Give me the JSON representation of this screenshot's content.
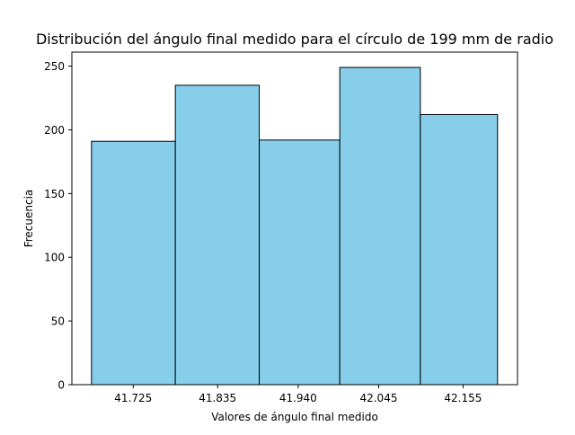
{
  "chart_data": {
    "type": "bar",
    "title": "Distribución del ángulo final medido para el círculo de 199 mm de radio",
    "xlabel": "Valores de ángulo final medido",
    "ylabel": "Frecuencia",
    "categories": [
      "41.725",
      "41.835",
      "41.940",
      "42.045",
      "42.155"
    ],
    "bin_edges": [
      41.6706,
      41.7799,
      41.8893,
      41.9943,
      42.0993,
      42.2
    ],
    "values": [
      191,
      235,
      192,
      249,
      212
    ],
    "xlim": [
      41.645,
      42.226
    ],
    "ylim": [
      0,
      261
    ],
    "yticks": [
      0,
      50,
      100,
      150,
      200,
      250
    ],
    "xticks": [
      41.725,
      41.835,
      41.94,
      42.045,
      42.155
    ],
    "grid": false,
    "colors": {
      "bar_fill": "#87CEEB",
      "bar_edge": "#000000",
      "axis": "#000000"
    }
  }
}
